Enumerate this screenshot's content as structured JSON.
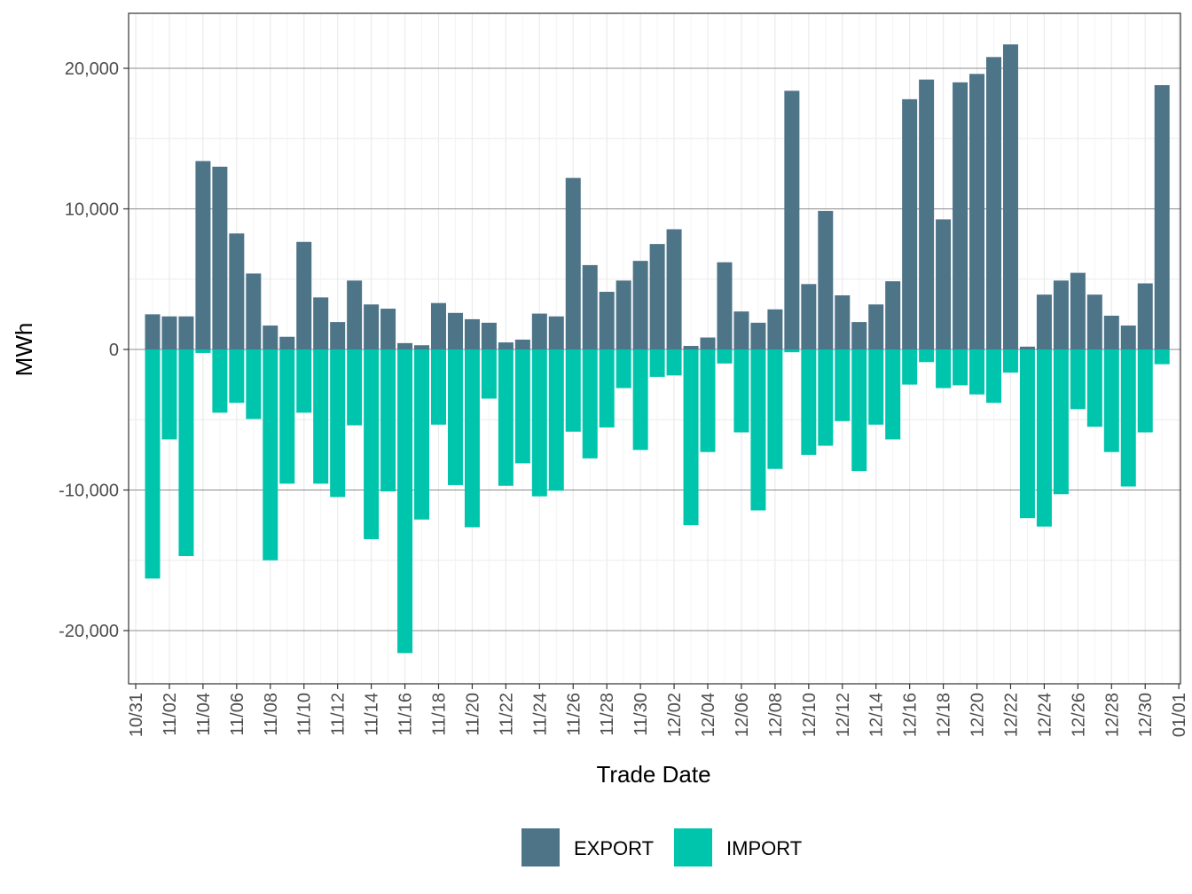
{
  "chart_data": {
    "type": "bar",
    "stacking": "diverging",
    "xlabel": "Trade Date",
    "ylabel": "MWh",
    "ylim": [
      -23500,
      23500
    ],
    "y_ticks": [
      -20000,
      -10000,
      0,
      10000,
      20000
    ],
    "y_tick_labels": [
      "-20,000",
      "-10,000",
      "0",
      "10,000",
      "20,000"
    ],
    "x_tick_labels": [
      "10/31",
      "11/02",
      "11/04",
      "11/06",
      "11/08",
      "11/10",
      "11/12",
      "11/14",
      "11/16",
      "11/18",
      "11/20",
      "11/22",
      "11/24",
      "11/26",
      "11/28",
      "11/30",
      "12/02",
      "12/04",
      "12/06",
      "12/08",
      "12/10",
      "12/12",
      "12/14",
      "12/16",
      "12/18",
      "12/20",
      "12/22",
      "12/24",
      "12/26",
      "12/28",
      "12/30",
      "01/01"
    ],
    "categories": [
      "11/01",
      "11/02",
      "11/03",
      "11/04",
      "11/05",
      "11/06",
      "11/07",
      "11/08",
      "11/09",
      "11/10",
      "11/11",
      "11/12",
      "11/13",
      "11/14",
      "11/15",
      "11/16",
      "11/17",
      "11/18",
      "11/19",
      "11/20",
      "11/21",
      "11/22",
      "11/23",
      "11/24",
      "11/25",
      "11/26",
      "11/27",
      "11/28",
      "11/29",
      "11/30",
      "12/01",
      "12/02",
      "12/03",
      "12/04",
      "12/05",
      "12/06",
      "12/07",
      "12/08",
      "12/09",
      "12/10",
      "12/11",
      "12/12",
      "12/13",
      "12/14",
      "12/15",
      "12/16",
      "12/17",
      "12/18",
      "12/19",
      "12/20",
      "12/21",
      "12/22",
      "12/23",
      "12/24",
      "12/25",
      "12/26",
      "12/27",
      "12/28",
      "12/29",
      "12/30",
      "12/31"
    ],
    "series": [
      {
        "name": "EXPORT",
        "color": "#4e7488",
        "values": [
          2500,
          2350,
          2350,
          13400,
          13000,
          8250,
          5400,
          1700,
          900,
          7650,
          3700,
          1950,
          4900,
          3200,
          2900,
          450,
          300,
          3300,
          2600,
          2150,
          1900,
          500,
          700,
          2550,
          2350,
          12200,
          6000,
          4100,
          4900,
          6300,
          7500,
          8550,
          250,
          850,
          6200,
          2700,
          1900,
          2850,
          18400,
          4650,
          9850,
          3850,
          1950,
          3200,
          4850,
          17800,
          19200,
          9250,
          19000,
          19600,
          20800,
          21700,
          200,
          3900,
          4900,
          5450,
          3900,
          2400,
          1700,
          4700,
          18800
        ]
      },
      {
        "name": "IMPORT",
        "color": "#00c5ad",
        "values": [
          -16300,
          -6400,
          -14700,
          -250,
          -4500,
          -3800,
          -4950,
          -15000,
          -9550,
          -4500,
          -9550,
          -10500,
          -5400,
          -13500,
          -10100,
          -21600,
          -12100,
          -5350,
          -9650,
          -12650,
          -3500,
          -9700,
          -8100,
          -10450,
          -10050,
          -5850,
          -7750,
          -5550,
          -2750,
          -7150,
          -1950,
          -1850,
          -12500,
          -7300,
          -1000,
          -5900,
          -11450,
          -8500,
          -200,
          -7500,
          -6850,
          -5100,
          -8650,
          -5350,
          -6400,
          -2500,
          -900,
          -2750,
          -2550,
          -3200,
          -3800,
          -1650,
          -12000,
          -12600,
          -10300,
          -4250,
          -5500,
          -7300,
          -9750,
          -5900,
          -1050
        ]
      }
    ],
    "grid": true,
    "legend": "bottom"
  }
}
